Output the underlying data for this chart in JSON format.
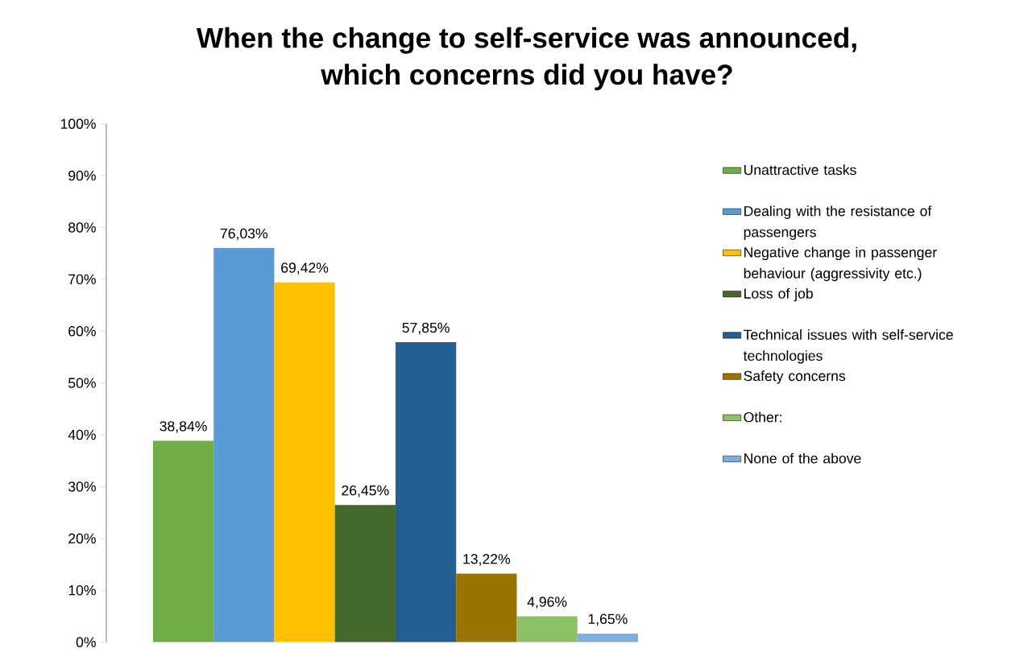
{
  "chart_data": {
    "type": "bar",
    "title": "When the change to self-service was announced,\nwhich concerns did you have?",
    "categories": [
      null
    ],
    "series": [
      {
        "name": "Unattractive tasks",
        "color": "#70ad47",
        "values": [
          38.84
        ],
        "value_labels": [
          "38,84%"
        ]
      },
      {
        "name": "Dealing with the resistance of passengers",
        "color": "#5b9bd5",
        "values": [
          76.03
        ],
        "value_labels": [
          "76,03%"
        ]
      },
      {
        "name": "Negative change in passenger behaviour (aggressivity etc.)",
        "color": "#ffc000",
        "values": [
          69.42
        ],
        "value_labels": [
          "69,42%"
        ]
      },
      {
        "name": "Loss of job",
        "color": "#43682b",
        "values": [
          26.45
        ],
        "value_labels": [
          "26,45%"
        ]
      },
      {
        "name": "Technical issues with self-service technologies",
        "color": "#255e91",
        "values": [
          57.85
        ],
        "value_labels": [
          "57,85%"
        ]
      },
      {
        "name": "Safety concerns",
        "color": "#997300",
        "values": [
          13.22
        ],
        "value_labels": [
          "13,22%"
        ]
      },
      {
        "name": "Other:",
        "color": "#8cc168",
        "values": [
          4.96
        ],
        "value_labels": [
          "4,96%"
        ]
      },
      {
        "name": "None of the above",
        "color": "#7cafdd",
        "values": [
          1.65
        ],
        "value_labels": [
          "1,65%"
        ]
      }
    ],
    "ylim": [
      0,
      100
    ],
    "yticks": [
      {
        "value": 0,
        "label": "0%"
      },
      {
        "value": 10,
        "label": "10%"
      },
      {
        "value": 20,
        "label": "20%"
      },
      {
        "value": 30,
        "label": "30%"
      },
      {
        "value": 40,
        "label": "40%"
      },
      {
        "value": 50,
        "label": "50%"
      },
      {
        "value": 60,
        "label": "60%"
      },
      {
        "value": 70,
        "label": "70%"
      },
      {
        "value": 80,
        "label": "80%"
      },
      {
        "value": 90,
        "label": "90%"
      },
      {
        "value": 100,
        "label": "100%"
      }
    ],
    "grid": false,
    "legend": "right"
  }
}
